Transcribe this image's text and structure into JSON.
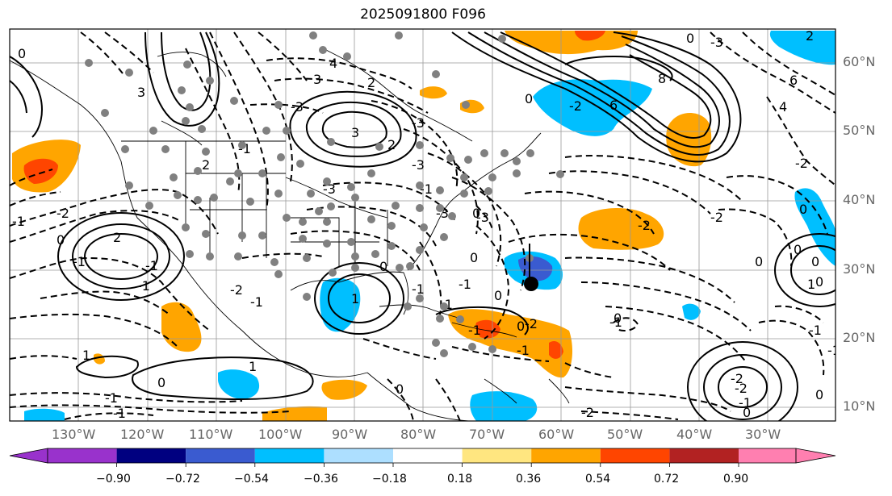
{
  "map": {
    "title": "2025091800 F096",
    "lat_labels": [
      "60°N",
      "50°N",
      "40°N",
      "30°N",
      "20°N",
      "10°N"
    ],
    "lon_labels": [
      "130°W",
      "120°W",
      "110°W",
      "100°W",
      "90°W",
      "80°W",
      "70°W",
      "60°W",
      "50°W",
      "40°W",
      "30°W"
    ],
    "contour_labels": [
      "0",
      "3",
      "4",
      "3",
      "2",
      "-3",
      "3",
      "2",
      "-3",
      "-3",
      "-1",
      "2",
      "-3",
      "-3",
      "-1",
      "-3",
      "2",
      "-2",
      "-2",
      "-1",
      "0",
      "-1",
      "-1",
      "0",
      "0",
      "8",
      "6",
      "-2",
      "-3",
      "0",
      "2",
      "6",
      "4",
      "-2",
      "-2",
      "-2",
      "0",
      "0",
      "0",
      "-1",
      "-2",
      "-2",
      "-1",
      "0",
      "0",
      "-2",
      "-1",
      "0",
      "-1",
      "-1",
      "0",
      "-1",
      "-1",
      "1",
      "1",
      "-1",
      "0",
      "1",
      "-1",
      "0",
      "-2",
      "-1",
      "0",
      "1",
      "-1",
      "0",
      "-1",
      "-1",
      "0",
      "0",
      "0"
    ],
    "colors": {
      "positive_anomaly": "#FFA500",
      "strong_positive_anomaly": "#FF4500",
      "negative_anomaly": "#00BFFF",
      "strong_negative_anomaly": "#4169E1",
      "contour": "#000000",
      "grid": "#999999",
      "station_marker": "#808080",
      "center_marker": "#000000"
    }
  },
  "colorbar": {
    "ticks": [
      "−0.90",
      "−0.72",
      "−0.54",
      "−0.36",
      "−0.18",
      "0.18",
      "0.36",
      "0.54",
      "0.72",
      "0.90"
    ],
    "colors": [
      "#9932CC",
      "#000080",
      "#3A5BD0",
      "#00BFFF",
      "#ADDFFF",
      "#FFFFFF",
      "#FFE680",
      "#FFA500",
      "#FF4500",
      "#B22222",
      "#FF7FB0"
    ]
  }
}
